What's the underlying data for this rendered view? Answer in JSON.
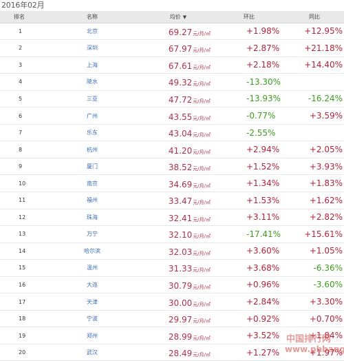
{
  "month": "2016年02月",
  "header": {
    "rank": "排名",
    "name": "名称",
    "avg": "均价",
    "avg_sort_icon": "▼",
    "mom": "环比",
    "yoy": "同比"
  },
  "unit": "元/月/㎡",
  "colors": {
    "up": "#b0243a",
    "down": "#3f9b1f",
    "price": "#b0304a",
    "city_link": "#3a6db5"
  },
  "rows": [
    {
      "rank": "1",
      "city": "北京",
      "price": "69.27",
      "mom": "+1.98%",
      "yoy": "+12.95%"
    },
    {
      "rank": "2",
      "city": "深圳",
      "price": "67.97",
      "mom": "+2.87%",
      "yoy": "+21.18%"
    },
    {
      "rank": "3",
      "city": "上海",
      "price": "67.61",
      "mom": "+2.18%",
      "yoy": "+14.40%"
    },
    {
      "rank": "4",
      "city": "陵水",
      "price": "49.32",
      "mom": "-13.30%",
      "yoy": ""
    },
    {
      "rank": "5",
      "city": "三亚",
      "price": "47.72",
      "mom": "-13.93%",
      "yoy": "-16.24%"
    },
    {
      "rank": "6",
      "city": "广州",
      "price": "43.55",
      "mom": "-0.77%",
      "yoy": "+3.59%"
    },
    {
      "rank": "7",
      "city": "乐东",
      "price": "43.04",
      "mom": "-2.55%",
      "yoy": ""
    },
    {
      "rank": "8",
      "city": "杭州",
      "price": "41.20",
      "mom": "+2.94%",
      "yoy": "+2.05%"
    },
    {
      "rank": "9",
      "city": "厦门",
      "price": "38.52",
      "mom": "+1.52%",
      "yoy": "+3.93%"
    },
    {
      "rank": "10",
      "city": "南京",
      "price": "34.69",
      "mom": "+1.34%",
      "yoy": "+1.83%"
    },
    {
      "rank": "11",
      "city": "福州",
      "price": "33.47",
      "mom": "+1.53%",
      "yoy": "+1.62%"
    },
    {
      "rank": "12",
      "city": "珠海",
      "price": "32.41",
      "mom": "+3.11%",
      "yoy": "+2.82%"
    },
    {
      "rank": "13",
      "city": "万宁",
      "price": "32.10",
      "mom": "-17.41%",
      "yoy": "+15.61%"
    },
    {
      "rank": "14",
      "city": "哈尔滨",
      "price": "32.03",
      "mom": "+3.60%",
      "yoy": "+1.05%"
    },
    {
      "rank": "15",
      "city": "温州",
      "price": "31.33",
      "mom": "+3.68%",
      "yoy": "-6.36%"
    },
    {
      "rank": "16",
      "city": "大连",
      "price": "30.79",
      "mom": "+0.96%",
      "yoy": "-3.60%"
    },
    {
      "rank": "17",
      "city": "天津",
      "price": "30.00",
      "mom": "+2.84%",
      "yoy": "+3.30%"
    },
    {
      "rank": "18",
      "city": "宁波",
      "price": "29.97",
      "mom": "+0.92%",
      "yoy": "+0.70%"
    },
    {
      "rank": "19",
      "city": "郑州",
      "price": "28.99",
      "mom": "+3.52%",
      "yoy": "+1.84%"
    },
    {
      "rank": "20",
      "city": "武汉",
      "price": "28.49",
      "mom": "+1.27%",
      "yoy": "+1.97%"
    }
  ],
  "watermark": {
    "line1": "中国排行网",
    "line2": "www.phbang.cn"
  }
}
